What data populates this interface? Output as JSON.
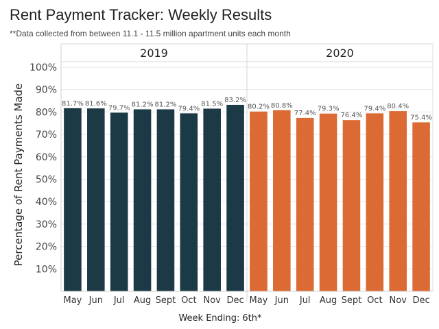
{
  "title": "Rent Payment Tracker: Weekly Results",
  "subtitle": "**Data collected from between 11.1 - 11.5 million apartment units each month",
  "chart_data": {
    "type": "bar",
    "title": "Rent Payment Tracker: Weekly Results",
    "ylabel": "Percentage of Rent Payments Made",
    "xlabel_prefix": "Week Ending:",
    "xlabel_suffix": "6th*",
    "ylim": [
      0,
      100
    ],
    "yticks": [
      "10%",
      "20%",
      "30%",
      "40%",
      "50%",
      "60%",
      "70%",
      "80%",
      "90%",
      "100%"
    ],
    "categories": [
      "May",
      "Jun",
      "Jul",
      "Aug",
      "Sept",
      "Oct",
      "Nov",
      "Dec"
    ],
    "series": [
      {
        "name": "2019",
        "color": "#1b3a46",
        "values": [
          81.7,
          81.6,
          79.7,
          81.2,
          81.2,
          79.4,
          81.5,
          83.2
        ],
        "labels": [
          "81.7%",
          "81.6%",
          "79.7%",
          "81.2%",
          "81.2%",
          "79.4%",
          "81.5%",
          "83.2%"
        ]
      },
      {
        "name": "2020",
        "color": "#db6a35",
        "values": [
          80.2,
          80.8,
          77.4,
          79.3,
          76.4,
          79.4,
          80.4,
          75.4
        ],
        "labels": [
          "80.2%",
          "80.8%",
          "77.4%",
          "79.3%",
          "76.4%",
          "79.4%",
          "80.4%",
          "75.4%"
        ]
      }
    ]
  }
}
